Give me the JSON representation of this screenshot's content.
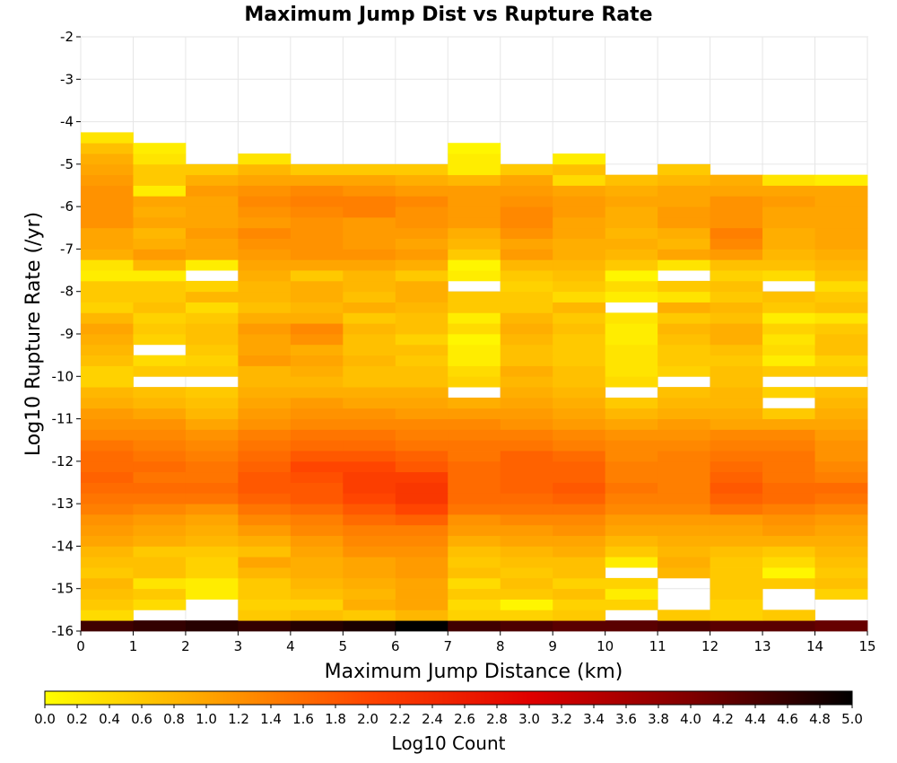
{
  "chart_data": {
    "type": "heatmap",
    "title": "Maximum Jump Dist vs Rupture Rate",
    "xlabel": "Maximum Jump Distance (km)",
    "ylabel": "Log10 Rupture Rate (/yr)",
    "xlim": [
      0,
      15
    ],
    "ylim": [
      -16,
      -2
    ],
    "x_ticks": [
      "0",
      "1",
      "2",
      "3",
      "4",
      "5",
      "6",
      "7",
      "8",
      "9",
      "10",
      "11",
      "12",
      "13",
      "14",
      "15"
    ],
    "y_ticks": [
      "-2",
      "-3",
      "-4",
      "-5",
      "-6",
      "-7",
      "-8",
      "-9",
      "-10",
      "-11",
      "-12",
      "-13",
      "-14",
      "-15",
      "-16"
    ],
    "x_bin_width": 1,
    "y_bin_width": 0.25,
    "y_bin_start": -16,
    "cells_note": "values: rows indexed from y=-16 upward (each row 0.25 wide), columns x=0..14; null = empty",
    "values": [
      [
        4.5,
        4.6,
        4.7,
        4.6,
        4.7,
        4.8,
        5.0,
        4.5,
        4.4,
        4.3,
        4.3,
        4.4,
        4.3,
        4.3,
        4.2
      ],
      [
        0.4,
        null,
        null,
        0.6,
        0.7,
        0.6,
        0.8,
        0.5,
        0.5,
        0.6,
        null,
        0.6,
        0.5,
        0.6,
        null
      ],
      [
        0.6,
        0.4,
        null,
        0.5,
        0.5,
        0.9,
        1.0,
        0.4,
        0.1,
        0.5,
        0.5,
        null,
        0.5,
        null,
        null
      ],
      [
        0.7,
        0.6,
        0.2,
        0.6,
        0.7,
        0.8,
        1.0,
        0.6,
        0.6,
        0.7,
        0.2,
        null,
        0.6,
        null,
        0.5
      ],
      [
        0.8,
        0.3,
        0.2,
        0.6,
        0.8,
        0.9,
        1.0,
        0.4,
        0.7,
        0.5,
        0.5,
        null,
        0.6,
        0.6,
        0.7
      ],
      [
        0.6,
        0.7,
        0.5,
        0.8,
        0.9,
        1.0,
        1.1,
        0.7,
        0.6,
        0.7,
        null,
        0.8,
        0.6,
        0.1,
        0.6
      ],
      [
        0.7,
        0.7,
        0.5,
        1.0,
        0.9,
        1.0,
        1.1,
        0.6,
        0.7,
        0.7,
        0.2,
        0.9,
        0.6,
        0.4,
        0.7
      ],
      [
        0.8,
        0.6,
        0.6,
        0.7,
        1.0,
        1.2,
        1.2,
        0.7,
        0.8,
        0.9,
        0.6,
        0.8,
        0.7,
        0.6,
        0.8
      ],
      [
        1.0,
        0.9,
        0.8,
        0.9,
        1.1,
        1.3,
        1.3,
        0.9,
        1.0,
        1.0,
        0.8,
        0.9,
        0.9,
        0.9,
        0.9
      ],
      [
        1.1,
        1.0,
        0.9,
        1.1,
        1.3,
        1.4,
        1.4,
        1.1,
        1.1,
        1.2,
        1.0,
        1.0,
        1.0,
        1.1,
        1.0
      ],
      [
        1.2,
        1.1,
        1.0,
        1.3,
        1.4,
        1.6,
        1.7,
        1.2,
        1.3,
        1.3,
        1.1,
        1.1,
        1.1,
        1.2,
        1.1
      ],
      [
        1.4,
        1.3,
        1.2,
        1.5,
        1.6,
        1.8,
        2.0,
        1.5,
        1.5,
        1.5,
        1.3,
        1.3,
        1.5,
        1.4,
        1.3
      ],
      [
        1.5,
        1.5,
        1.5,
        1.7,
        1.8,
        2.0,
        2.2,
        1.6,
        1.6,
        1.7,
        1.4,
        1.4,
        1.7,
        1.6,
        1.5
      ],
      [
        1.6,
        1.6,
        1.6,
        1.8,
        1.8,
        2.1,
        2.2,
        1.6,
        1.7,
        1.8,
        1.5,
        1.4,
        1.8,
        1.6,
        1.6
      ],
      [
        1.7,
        1.5,
        1.5,
        1.8,
        1.9,
        2.1,
        2.1,
        1.6,
        1.7,
        1.7,
        1.4,
        1.4,
        1.7,
        1.5,
        1.4
      ],
      [
        1.6,
        1.6,
        1.5,
        1.7,
        2.0,
        2.0,
        1.8,
        1.6,
        1.7,
        1.7,
        1.4,
        1.4,
        1.6,
        1.5,
        1.3
      ],
      [
        1.6,
        1.5,
        1.4,
        1.6,
        1.8,
        1.8,
        1.7,
        1.5,
        1.7,
        1.6,
        1.3,
        1.4,
        1.5,
        1.5,
        1.2
      ],
      [
        1.5,
        1.4,
        1.3,
        1.5,
        1.6,
        1.6,
        1.5,
        1.5,
        1.5,
        1.4,
        1.3,
        1.3,
        1.4,
        1.4,
        1.2
      ],
      [
        1.3,
        1.3,
        1.2,
        1.4,
        1.5,
        1.5,
        1.4,
        1.4,
        1.4,
        1.3,
        1.2,
        1.2,
        1.3,
        1.3,
        1.1
      ],
      [
        1.2,
        1.2,
        1.0,
        1.2,
        1.3,
        1.3,
        1.3,
        1.3,
        1.2,
        1.1,
        1.0,
        1.1,
        1.0,
        1.0,
        1.0
      ],
      [
        1.1,
        1.0,
        0.8,
        1.1,
        1.2,
        1.2,
        1.1,
        1.1,
        1.1,
        1.0,
        0.8,
        0.9,
        0.9,
        0.6,
        0.9
      ],
      [
        0.9,
        0.8,
        0.7,
        1.0,
        1.1,
        1.0,
        1.0,
        0.9,
        1.0,
        0.9,
        0.6,
        0.8,
        0.8,
        null,
        0.8
      ],
      [
        0.8,
        0.7,
        0.6,
        0.9,
        0.9,
        0.9,
        0.9,
        null,
        0.9,
        0.8,
        null,
        0.7,
        0.8,
        0.5,
        0.7
      ],
      [
        0.5,
        null,
        null,
        0.8,
        0.8,
        0.7,
        0.7,
        0.5,
        0.8,
        0.7,
        0.4,
        null,
        0.7,
        null,
        null
      ],
      [
        0.5,
        0.6,
        0.6,
        0.8,
        0.9,
        0.7,
        0.7,
        0.4,
        0.9,
        0.7,
        0.3,
        0.5,
        0.7,
        0.6,
        0.6
      ],
      [
        0.7,
        0.4,
        0.5,
        1.1,
        1.0,
        0.8,
        0.6,
        0.2,
        0.7,
        0.6,
        0.3,
        0.6,
        0.6,
        0.2,
        0.5
      ],
      [
        0.8,
        null,
        0.6,
        1.0,
        0.9,
        0.7,
        0.7,
        0.2,
        0.7,
        0.6,
        0.3,
        0.6,
        0.7,
        0.4,
        0.7
      ],
      [
        0.9,
        0.5,
        0.7,
        1.0,
        1.2,
        0.7,
        0.5,
        0.1,
        0.8,
        0.6,
        0.2,
        0.7,
        0.9,
        0.3,
        0.7
      ],
      [
        1.0,
        0.6,
        0.7,
        1.1,
        1.3,
        0.8,
        0.7,
        0.4,
        0.9,
        0.7,
        0.2,
        0.8,
        0.9,
        0.5,
        0.6
      ],
      [
        0.8,
        0.5,
        0.6,
        0.9,
        0.9,
        0.6,
        0.7,
        0.2,
        0.8,
        0.6,
        0.3,
        0.6,
        0.7,
        0.2,
        0.3
      ],
      [
        0.5,
        0.7,
        0.4,
        0.7,
        0.8,
        0.9,
        0.8,
        0.6,
        0.6,
        0.8,
        null,
        0.9,
        0.8,
        0.6,
        0.7
      ],
      [
        0.6,
        0.6,
        0.8,
        0.8,
        0.9,
        0.7,
        0.9,
        0.6,
        0.6,
        0.4,
        0.2,
        0.3,
        0.6,
        0.7,
        0.6
      ],
      [
        0.6,
        0.6,
        0.5,
        0.8,
        0.9,
        0.8,
        0.9,
        null,
        0.5,
        0.6,
        0.4,
        0.6,
        0.7,
        null,
        0.4
      ],
      [
        0.2,
        0.2,
        null,
        0.9,
        0.6,
        0.8,
        0.6,
        0.2,
        0.6,
        0.7,
        0.1,
        null,
        0.5,
        0.4,
        0.7
      ],
      [
        0.3,
        0.8,
        0.2,
        1.0,
        1.0,
        1.0,
        0.9,
        0.1,
        0.8,
        0.8,
        0.6,
        0.3,
        0.7,
        0.7,
        0.8
      ],
      [
        0.9,
        1.1,
        1.0,
        1.1,
        1.2,
        1.2,
        1.1,
        0.6,
        1.1,
        0.9,
        0.8,
        1.0,
        1.1,
        0.8,
        0.9
      ],
      [
        1.0,
        0.9,
        1.0,
        1.2,
        1.2,
        1.1,
        1.0,
        0.8,
        1.0,
        0.9,
        0.9,
        0.8,
        1.3,
        0.9,
        1.0
      ],
      [
        1.0,
        0.8,
        1.1,
        1.3,
        1.2,
        1.1,
        1.1,
        0.9,
        1.2,
        1.0,
        0.8,
        0.9,
        1.4,
        0.9,
        1.0
      ],
      [
        1.2,
        1.0,
        1.0,
        1.1,
        1.2,
        1.1,
        1.2,
        1.1,
        1.3,
        1.0,
        0.9,
        1.1,
        1.2,
        1.0,
        1.0
      ],
      [
        1.2,
        0.9,
        1.0,
        1.2,
        1.3,
        1.4,
        1.2,
        1.1,
        1.3,
        1.1,
        0.9,
        1.1,
        1.2,
        1.0,
        1.0
      ],
      [
        1.2,
        1.0,
        1.0,
        1.3,
        1.4,
        1.4,
        1.3,
        1.1,
        1.2,
        1.1,
        1.0,
        1.0,
        1.2,
        1.1,
        1.0
      ],
      [
        1.2,
        0.2,
        1.1,
        1.2,
        1.3,
        1.2,
        1.1,
        1.1,
        1.1,
        1.0,
        0.9,
        1.0,
        1.0,
        1.0,
        1.0
      ],
      [
        1.1,
        0.6,
        0.9,
        1.0,
        1.0,
        1.0,
        0.9,
        0.8,
        1.0,
        0.4,
        0.7,
        0.8,
        0.9,
        0.3,
        0.2
      ],
      [
        1.0,
        0.6,
        0.6,
        0.8,
        0.6,
        0.6,
        0.6,
        0.2,
        0.6,
        0.7,
        null,
        0.6,
        null,
        null,
        null
      ],
      [
        0.9,
        0.3,
        null,
        0.3,
        null,
        null,
        null,
        0.2,
        null,
        0.2,
        null,
        null,
        null,
        null,
        null
      ],
      [
        0.7,
        0.2,
        null,
        null,
        null,
        null,
        null,
        0.1,
        null,
        null,
        null,
        null,
        null,
        null,
        null
      ],
      [
        0.3,
        null,
        null,
        null,
        null,
        null,
        null,
        null,
        null,
        null,
        null,
        null,
        null,
        null,
        null
      ]
    ],
    "colorbar": {
      "title": "Log10 Count",
      "min": 0,
      "max": 5,
      "ticks": [
        "0.0",
        "0.2",
        "0.4",
        "0.6",
        "0.8",
        "1.0",
        "1.2",
        "1.4",
        "1.6",
        "1.8",
        "2.0",
        "2.2",
        "2.4",
        "2.6",
        "2.8",
        "3.0",
        "3.2",
        "3.4",
        "3.6",
        "3.8",
        "4.0",
        "4.2",
        "4.4",
        "4.6",
        "4.8",
        "5.0"
      ],
      "palette": [
        "#ffff00",
        "#ffa500",
        "#ff4500",
        "#e00000",
        "#800000",
        "#000000"
      ]
    },
    "grid": true,
    "legend": "colorbar-bottom"
  }
}
